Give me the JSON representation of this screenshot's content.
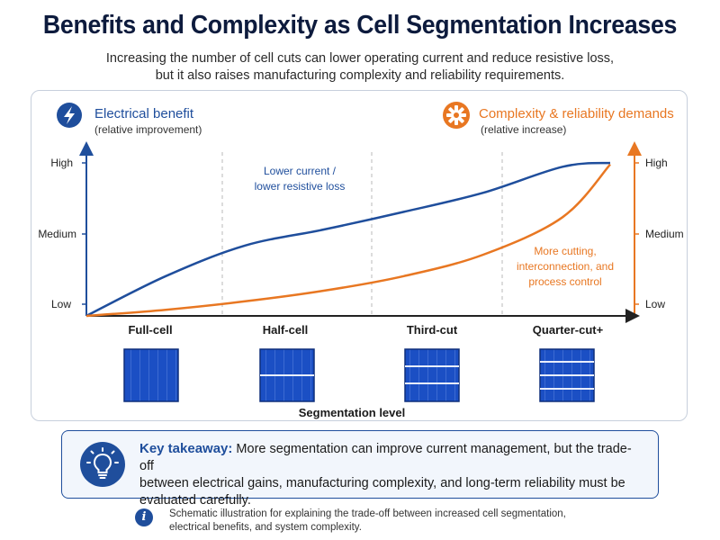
{
  "title": "Benefits and Complexity as Cell Segmentation Increases",
  "subtitle_line1": "Increasing the number of cell cuts can lower operating current and reduce resistive loss,",
  "subtitle_line2": "but it also raises manufacturing complexity and reliability requirements.",
  "chart_data": {
    "type": "line",
    "categories": [
      "Full-cell",
      "Half-cell",
      "Third-cut",
      "Quarter-cut+"
    ],
    "xlabel": "Segmentation level",
    "y_levels": [
      "Low",
      "Medium",
      "High"
    ],
    "left_axis": {
      "label": "Electrical benefit",
      "sublabel": "(relative improvement)",
      "color": "#1f4e9c",
      "icon": "lightning-icon"
    },
    "right_axis": {
      "label": "Complexity & reliability demands",
      "sublabel": "(relative increase)",
      "color": "#e87722",
      "icon": "gear-icon"
    },
    "series": [
      {
        "name": "Electrical benefit",
        "color": "#1f4e9c",
        "x": [
          0,
          0.5,
          1,
          1.5,
          2,
          2.5,
          3,
          3.3
        ],
        "y": [
          0.0,
          0.52,
          0.92,
          1.13,
          1.36,
          1.61,
          1.95,
          2.0
        ]
      },
      {
        "name": "Complexity & reliability demands",
        "color": "#e87722",
        "x": [
          0,
          0.5,
          1,
          1.5,
          2,
          2.5,
          3,
          3.3
        ],
        "y": [
          0.0,
          0.08,
          0.19,
          0.33,
          0.52,
          0.8,
          1.29,
          1.98
        ]
      }
    ],
    "annotations": [
      {
        "lines": [
          "Lower current /",
          "lower resistive loss"
        ],
        "color": "#1f4e9c"
      },
      {
        "lines": [
          "More cutting,",
          "interconnection, and",
          "process control"
        ],
        "color": "#e87722"
      }
    ],
    "grid": "vertical dashed separators"
  },
  "takeaway": {
    "label": "Key takeaway:",
    "line1": " More segmentation can improve current management, but the trade-off",
    "line2": "between electrical gains, manufacturing complexity, and long-term reliability must be",
    "line3": "evaluated carefully."
  },
  "note": {
    "line1": "Schematic illustration for explaining the trade-off between increased cell segmentation,",
    "line2": "electrical benefits, and system complexity."
  }
}
